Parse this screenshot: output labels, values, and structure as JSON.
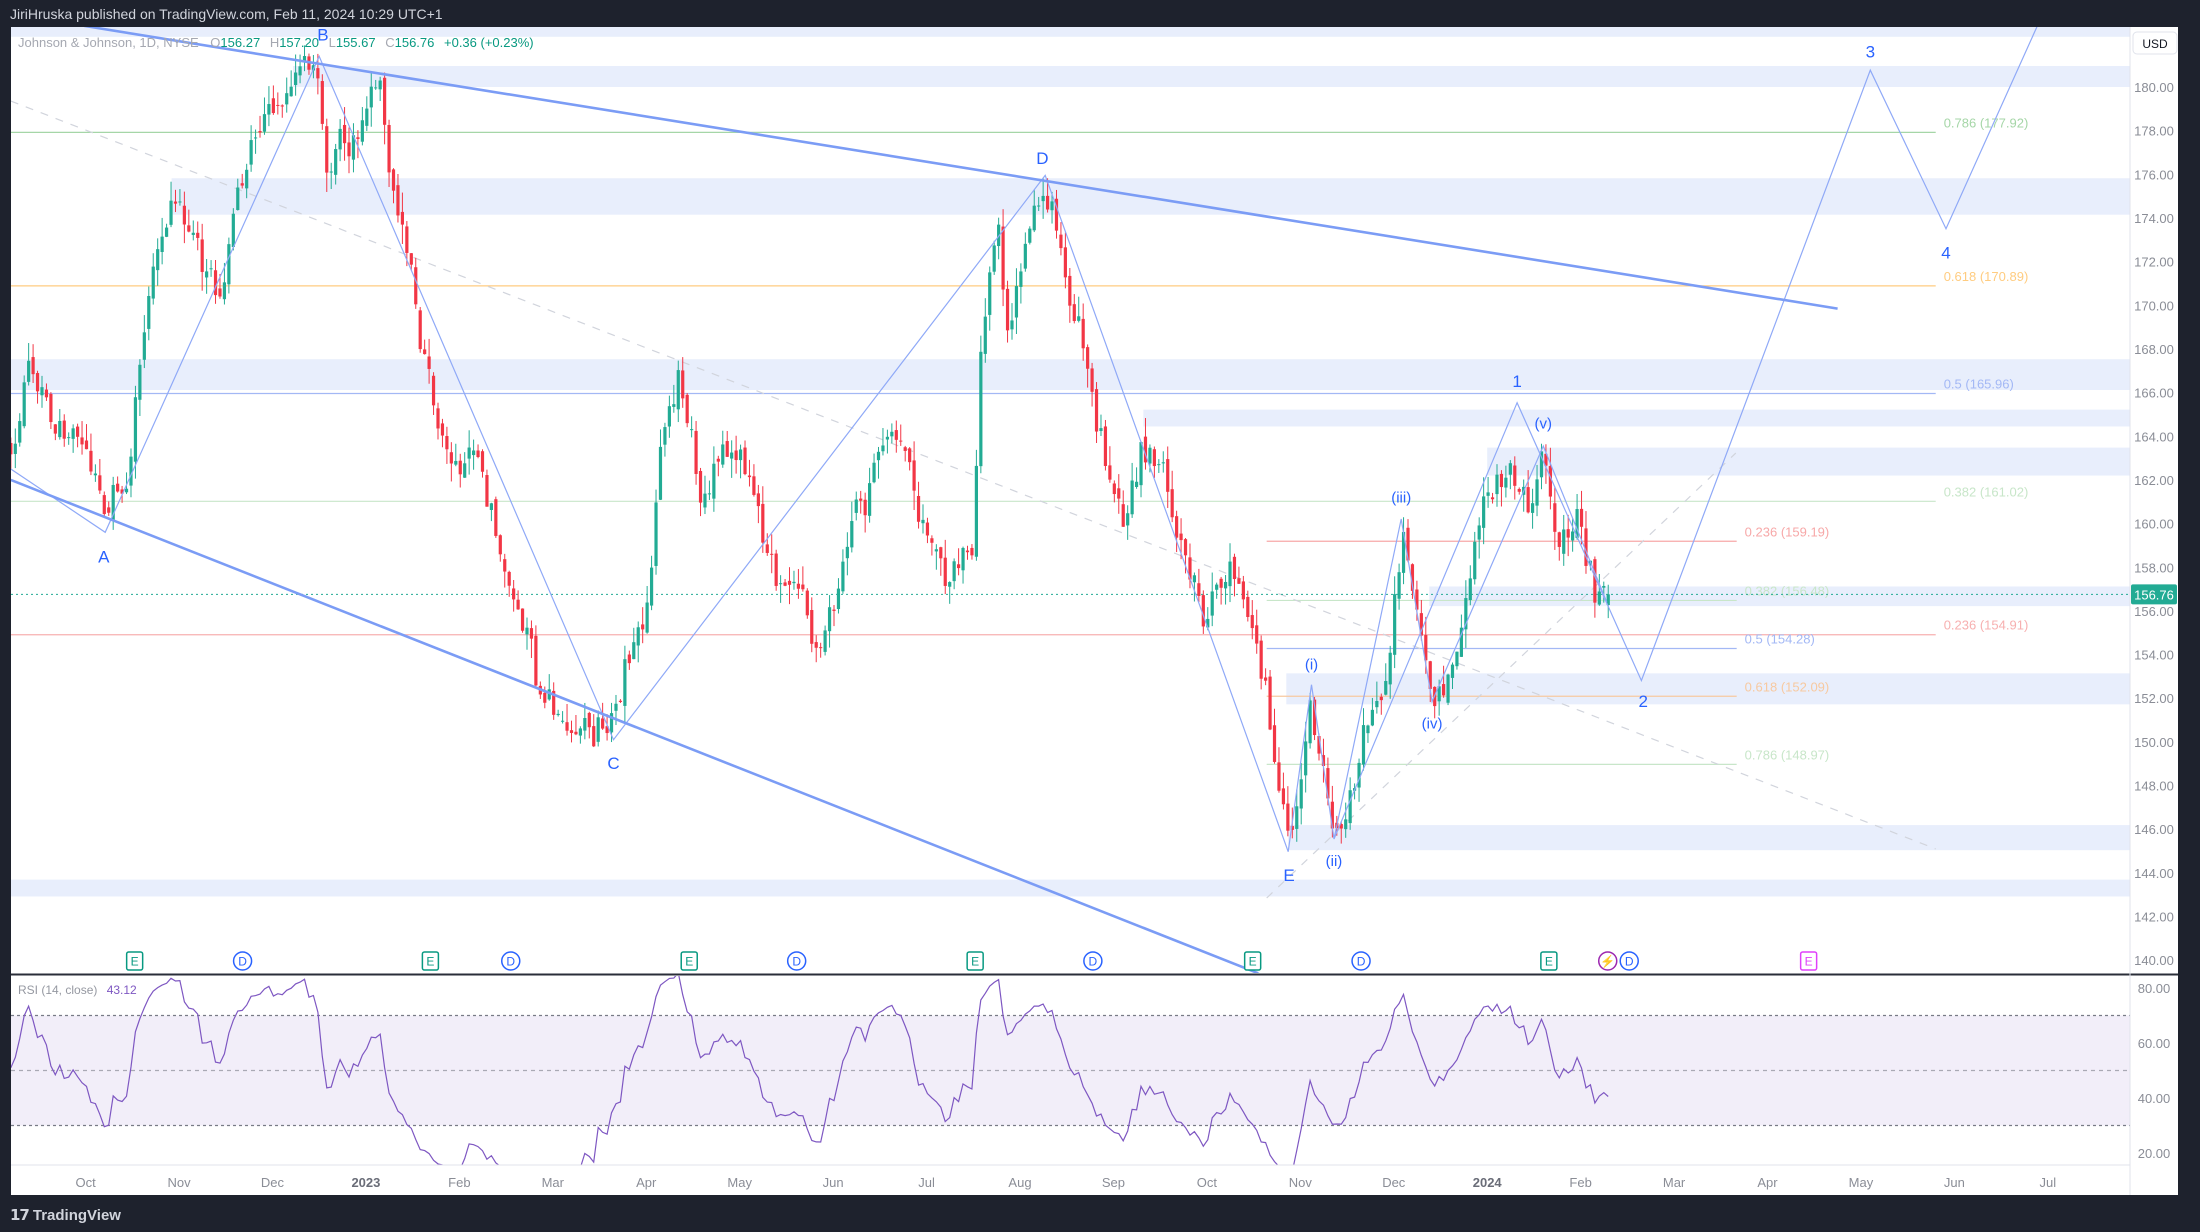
{
  "publish_note": "JiriHruska published on TradingView.com, Feb 11, 2024 10:29 UTC+1",
  "legend": {
    "symbol": "Johnson & Johnson, 1D, NYSE",
    "o_label": "O",
    "o": "156.27",
    "h_label": "H",
    "h": "157.20",
    "l_label": "L",
    "l": "155.67",
    "c_label": "C",
    "c": "156.76",
    "change": "+0.36 (+0.23%)"
  },
  "currency": "USD",
  "current_price": "156.76",
  "rsi": {
    "label": "RSI (14, close)",
    "value": "43.12",
    "axis": [
      "80.00",
      "60.00",
      "40.00",
      "20.00"
    ]
  },
  "logo": {
    "mark": "17",
    "text": "TradingView"
  },
  "colors": {
    "up": "#22ab94",
    "down": "#f23645",
    "drawing": "#7b9cf5",
    "zone": "#e8eefc",
    "rsi": "#7e57c2",
    "text_up": "#089981"
  },
  "chart_data": {
    "type": "candlestick",
    "title": "Johnson & Johnson, 1D, NYSE",
    "x_unit": "months since Oct 2022",
    "ylim": [
      139.2,
      182.75
    ],
    "y_ticks": [
      "140.00",
      "142.00",
      "144.00",
      "146.00",
      "148.00",
      "150.00",
      "152.00",
      "154.00",
      "156.00",
      "158.00",
      "160.00",
      "162.00",
      "164.00",
      "166.00",
      "168.00",
      "170.00",
      "172.00",
      "174.00",
      "176.00",
      "178.00",
      "180.00"
    ],
    "x_ticks": [
      {
        "t": 0,
        "label": "Oct"
      },
      {
        "t": 1,
        "label": "Nov"
      },
      {
        "t": 2,
        "label": "Dec"
      },
      {
        "t": 3,
        "label": "2023",
        "bold": true
      },
      {
        "t": 4,
        "label": "Feb"
      },
      {
        "t": 5,
        "label": "Mar"
      },
      {
        "t": 6,
        "label": "Apr"
      },
      {
        "t": 7,
        "label": "May"
      },
      {
        "t": 8,
        "label": "Jun"
      },
      {
        "t": 9,
        "label": "Jul"
      },
      {
        "t": 10,
        "label": "Aug"
      },
      {
        "t": 11,
        "label": "Sep"
      },
      {
        "t": 12,
        "label": "Oct"
      },
      {
        "t": 13,
        "label": "Nov"
      },
      {
        "t": 14,
        "label": "Dec"
      },
      {
        "t": 15,
        "label": "2024",
        "bold": true
      },
      {
        "t": 16,
        "label": "Feb"
      },
      {
        "t": 17,
        "label": "Mar"
      },
      {
        "t": 18,
        "label": "Apr"
      },
      {
        "t": 19,
        "label": "May"
      },
      {
        "t": 20,
        "label": "Jun"
      },
      {
        "t": 21,
        "label": "Jul"
      }
    ],
    "price_path": [
      [
        -0.8,
        163
      ],
      [
        -0.62,
        166
      ],
      [
        -0.24,
        165
      ],
      [
        0.21,
        160
      ],
      [
        0.44,
        162
      ],
      [
        0.74,
        172
      ],
      [
        0.96,
        175
      ],
      [
        1.41,
        170
      ],
      [
        1.71,
        176
      ],
      [
        2.01,
        179
      ],
      [
        2.46,
        181
      ],
      [
        2.61,
        175
      ],
      [
        2.84,
        178
      ],
      [
        3.14,
        180.5
      ],
      [
        3.29,
        175
      ],
      [
        3.59,
        168
      ],
      [
        3.89,
        162
      ],
      [
        4.19,
        163
      ],
      [
        4.56,
        157
      ],
      [
        4.94,
        152
      ],
      [
        5.17,
        151
      ],
      [
        5.65,
        150.5
      ],
      [
        5.84,
        154
      ],
      [
        6.07,
        158
      ],
      [
        6.14,
        164
      ],
      [
        6.37,
        166
      ],
      [
        6.59,
        162
      ],
      [
        6.97,
        164
      ],
      [
        7.34,
        158
      ],
      [
        7.64,
        157
      ],
      [
        7.87,
        154
      ],
      [
        8.09,
        158
      ],
      [
        8.47,
        163
      ],
      [
        8.69,
        165
      ],
      [
        8.99,
        160
      ],
      [
        9.29,
        158
      ],
      [
        9.52,
        160
      ],
      [
        9.55,
        168
      ],
      [
        9.77,
        174
      ],
      [
        9.89,
        168
      ],
      [
        10.27,
        176
      ],
      [
        10.57,
        170
      ],
      [
        10.8,
        165
      ],
      [
        11.1,
        160
      ],
      [
        11.32,
        164
      ],
      [
        11.7,
        160
      ],
      [
        12.0,
        155
      ],
      [
        12.22,
        158.5
      ],
      [
        12.52,
        156
      ],
      [
        12.87,
        145
      ],
      [
        13.12,
        152
      ],
      [
        13.35,
        146
      ],
      [
        13.65,
        150
      ],
      [
        13.95,
        154
      ],
      [
        14.1,
        160
      ],
      [
        14.25,
        156
      ],
      [
        14.43,
        152
      ],
      [
        14.7,
        155
      ],
      [
        15.0,
        161
      ],
      [
        15.23,
        163
      ],
      [
        15.45,
        160
      ],
      [
        15.6,
        163.5
      ],
      [
        15.75,
        158
      ],
      [
        15.98,
        160
      ],
      [
        16.13,
        157
      ],
      [
        16.28,
        156.8
      ]
    ],
    "last_bar": {
      "o": 156.27,
      "h": 157.2,
      "l": 155.67,
      "c": 156.76
    },
    "zones": [
      {
        "from": 182.3,
        "to": 183.5,
        "t0": -0.8
      },
      {
        "from": 180.0,
        "to": 180.96,
        "t0": 2.22
      },
      {
        "from": 174.15,
        "to": 175.82,
        "t0": 0.92
      },
      {
        "from": 166.12,
        "to": 167.53,
        "t0": -0.8
      },
      {
        "from": 164.45,
        "to": 165.22,
        "t0": 11.32
      },
      {
        "from": 162.2,
        "to": 163.48,
        "t0": 15.0
      },
      {
        "from": 156.22,
        "to": 157.12,
        "t0": 14.38
      },
      {
        "from": 151.72,
        "to": 153.14,
        "t0": 12.85
      },
      {
        "from": 145.04,
        "to": 146.19,
        "t0": 12.87
      },
      {
        "from": 142.92,
        "to": 143.69,
        "t0": -0.8
      }
    ],
    "fib_sets": [
      {
        "t0": -0.8,
        "t1": 19.8,
        "levels": [
          {
            "price": 177.92,
            "label": "0.786 (177.92)",
            "color": "#a5d6a7"
          },
          {
            "price": 170.89,
            "label": "0.618 (170.89)",
            "color": "#ffcc80"
          },
          {
            "price": 165.96,
            "label": "0.5 (165.96)",
            "color": "#a3b8f5"
          },
          {
            "price": 161.02,
            "label": "0.382 (161.02)",
            "color": "#c8e6c9"
          },
          {
            "price": 154.91,
            "label": "0.236 (154.91)",
            "color": "#f7b0b0"
          }
        ]
      },
      {
        "t0": 12.64,
        "t1": 17.67,
        "levels": [
          {
            "price": 159.19,
            "label": "0.236 (159.19)",
            "color": "#f7a8a8"
          },
          {
            "price": 156.48,
            "label": "0.382 (156.48)",
            "color": "#c8e6c9"
          },
          {
            "price": 154.28,
            "label": "0.5 (154.28)",
            "color": "#a3b8f5"
          },
          {
            "price": 152.09,
            "label": "0.618 (152.09)",
            "color": "#f7c9a0"
          },
          {
            "price": 148.97,
            "label": "0.786 (148.97)",
            "color": "#c8e6c9"
          }
        ]
      }
    ],
    "trendlines": [
      {
        "name": "upper-channel-line",
        "points": [
          [
            -0.015,
            182.8
          ],
          [
            18.75,
            169.85
          ]
        ]
      },
      {
        "name": "lower-channel-line",
        "points": [
          [
            -0.8,
            162
          ],
          [
            12.55,
            139.4
          ]
        ]
      }
    ],
    "dashed_lines": [
      {
        "name": "grey-dashed-trendline",
        "points": [
          [
            -0.8,
            179.36
          ],
          [
            19.8,
            145.1
          ]
        ]
      },
      {
        "name": "grey-dashed-support-line",
        "points": [
          [
            12.64,
            142.85
          ],
          [
            17.66,
            163.23
          ]
        ]
      }
    ],
    "wave_paths": [
      {
        "name": "abcde-wave-path",
        "points": [
          [
            -0.8,
            162.5
          ],
          [
            0.21,
            159.6
          ],
          [
            2.5,
            181.4
          ],
          [
            5.65,
            150.1
          ],
          [
            10.27,
            175.95
          ],
          [
            12.87,
            144.97
          ]
        ]
      },
      {
        "name": "subwave-path",
        "points": [
          [
            12.87,
            144.97
          ],
          [
            13.12,
            152.62
          ],
          [
            13.36,
            145.55
          ],
          [
            14.08,
            160.21
          ],
          [
            14.41,
            151.85
          ],
          [
            15.6,
            163.55
          ],
          [
            16.28,
            156.4
          ]
        ]
      },
      {
        "name": "projection-wave-path",
        "points": [
          [
            13.36,
            145.55
          ],
          [
            15.32,
            165.54
          ],
          [
            16.65,
            152.81
          ],
          [
            19.1,
            180.77
          ],
          [
            19.91,
            173.51
          ],
          [
            20.93,
            183.2
          ]
        ]
      }
    ],
    "wave_labels": [
      {
        "text": "A",
        "t": 0.195,
        "p": 158.47
      },
      {
        "text": "B",
        "t": 2.54,
        "p": 182.38
      },
      {
        "text": "C",
        "t": 5.65,
        "p": 149.02
      },
      {
        "text": "D",
        "t": 10.24,
        "p": 176.72
      },
      {
        "text": "E",
        "t": 12.88,
        "p": 143.88
      },
      {
        "text": "1",
        "t": 15.32,
        "p": 166.5
      },
      {
        "text": "2",
        "t": 16.67,
        "p": 151.85
      },
      {
        "text": "3",
        "t": 19.1,
        "p": 181.6
      },
      {
        "text": "4",
        "t": 19.91,
        "p": 172.4
      },
      {
        "text": "(i)",
        "t": 13.12,
        "p": 153.52
      },
      {
        "text": "(ii)",
        "t": 13.36,
        "p": 144.52
      },
      {
        "text": "(iii)",
        "t": 14.08,
        "p": 161.17
      },
      {
        "text": "(iv)",
        "t": 14.41,
        "p": 150.82
      },
      {
        "text": "(v)",
        "t": 15.6,
        "p": 164.57
      }
    ],
    "events": [
      {
        "type": "earnings",
        "label": "E",
        "t": 0.525
      },
      {
        "type": "dividend",
        "label": "D",
        "t": 1.68
      },
      {
        "type": "earnings",
        "label": "E",
        "t": 3.69
      },
      {
        "type": "dividend",
        "label": "D",
        "t": 4.55
      },
      {
        "type": "earnings",
        "label": "E",
        "t": 6.46
      },
      {
        "type": "dividend",
        "label": "D",
        "t": 7.61
      },
      {
        "type": "earnings",
        "label": "E",
        "t": 9.52
      },
      {
        "type": "dividend",
        "label": "D",
        "t": 10.78
      },
      {
        "type": "earnings",
        "label": "E",
        "t": 12.49
      },
      {
        "type": "dividend",
        "label": "D",
        "t": 13.65
      },
      {
        "type": "earnings",
        "label": "E",
        "t": 15.66
      },
      {
        "type": "split",
        "label": "⚡",
        "t": 16.29
      },
      {
        "type": "dividend",
        "label": "D",
        "t": 16.52
      },
      {
        "type": "future-earnings",
        "label": "E",
        "t": 18.44
      }
    ],
    "rsi_bands": {
      "upper": 70,
      "middle": 50,
      "lower": 30
    }
  }
}
